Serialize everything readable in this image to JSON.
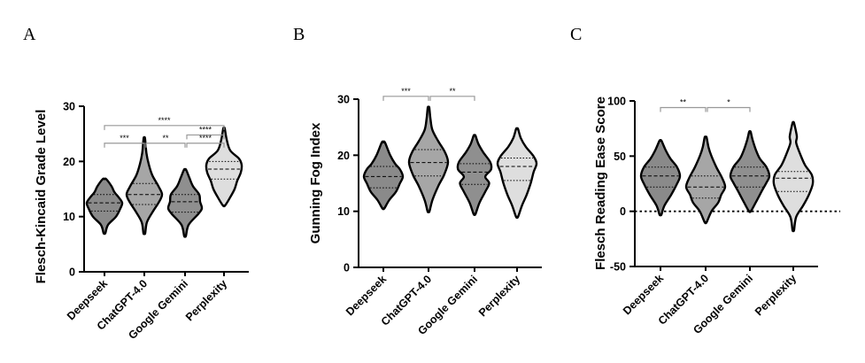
{
  "colors": {
    "Deepseek": "#8a8a8a",
    "ChatGPT-4.0": "#a6a6a6",
    "Google Gemini": "#8f8f8f",
    "Perplexity": "#dedede",
    "outline": "#000000",
    "bracket": "#999999"
  },
  "chart_data": [
    {
      "panel": "A",
      "type": "violin",
      "ylabel": "Flesch-Kincaid Grade Level",
      "ylim": [
        0,
        30
      ],
      "yticks": [
        0,
        10,
        20,
        30
      ],
      "categories": [
        "Deepseek",
        "ChatGPT-4.0",
        "Google Gemini",
        "Perplexity"
      ],
      "series": [
        {
          "min": 7,
          "max": 16.8,
          "q1": 11,
          "median": 12.5,
          "q3": 14,
          "density": [
            [
              7,
              0.05
            ],
            [
              8.5,
              0.2
            ],
            [
              10,
              0.65
            ],
            [
              11.5,
              0.9
            ],
            [
              12.5,
              1
            ],
            [
              13.5,
              0.8
            ],
            [
              14.5,
              0.55
            ],
            [
              15.5,
              0.4
            ],
            [
              16.8,
              0.1
            ]
          ]
        },
        {
          "min": 7,
          "max": 24.2,
          "q1": 12.2,
          "median": 14,
          "q3": 16,
          "density": [
            [
              7,
              0.05
            ],
            [
              9,
              0.15
            ],
            [
              11,
              0.5
            ],
            [
              12.5,
              0.8
            ],
            [
              14,
              1
            ],
            [
              15.5,
              0.8
            ],
            [
              17.5,
              0.45
            ],
            [
              19.5,
              0.25
            ],
            [
              21.5,
              0.12
            ],
            [
              24.2,
              0.04
            ]
          ]
        },
        {
          "min": 6.5,
          "max": 18.5,
          "q1": 10.8,
          "median": 12.7,
          "q3": 14,
          "density": [
            [
              6.5,
              0.05
            ],
            [
              8.5,
              0.2
            ],
            [
              10.5,
              0.75
            ],
            [
              11.5,
              0.95
            ],
            [
              12.7,
              0.85
            ],
            [
              14,
              0.8
            ],
            [
              15.5,
              0.45
            ],
            [
              17,
              0.25
            ],
            [
              18.5,
              0.06
            ]
          ]
        },
        {
          "min": 12,
          "max": 26,
          "q1": 16.8,
          "median": 18.6,
          "q3": 20,
          "density": [
            [
              12,
              0.06
            ],
            [
              13.5,
              0.35
            ],
            [
              15,
              0.6
            ],
            [
              16.5,
              0.75
            ],
            [
              18,
              0.95
            ],
            [
              19.3,
              1
            ],
            [
              20.5,
              0.85
            ],
            [
              22,
              0.35
            ],
            [
              24,
              0.15
            ],
            [
              26,
              0.04
            ]
          ]
        }
      ],
      "comparisons": [
        {
          "pair": [
            "Deepseek",
            "Perplexity"
          ],
          "label": "****",
          "y": 26.5
        },
        {
          "pair": [
            "Google Gemini",
            "Perplexity"
          ],
          "label": "****",
          "y": 24.8
        },
        {
          "pair": [
            "Deepseek",
            "ChatGPT-4.0"
          ],
          "label": "***",
          "y": 23.3
        },
        {
          "pair": [
            "ChatGPT-4.0",
            "Google Gemini"
          ],
          "label": "**",
          "y": 23.3
        },
        {
          "pair": [
            "Google Gemini",
            "Perplexity"
          ],
          "label": "****",
          "y": 23.3
        }
      ]
    },
    {
      "panel": "B",
      "type": "violin",
      "ylabel": "Gunning Fog Index",
      "ylim": [
        0,
        30
      ],
      "yticks": [
        0,
        10,
        20,
        30
      ],
      "categories": [
        "Deepseek",
        "ChatGPT-4.0",
        "Google Gemini",
        "Perplexity"
      ],
      "series": [
        {
          "min": 10.5,
          "max": 22.3,
          "q1": 14.2,
          "median": 16.2,
          "q3": 18,
          "density": [
            [
              10.5,
              0.05
            ],
            [
              12,
              0.3
            ],
            [
              13.5,
              0.65
            ],
            [
              15,
              0.85
            ],
            [
              16.2,
              1
            ],
            [
              17.5,
              0.85
            ],
            [
              18.5,
              0.6
            ],
            [
              20,
              0.35
            ],
            [
              22.3,
              0.08
            ]
          ]
        },
        {
          "min": 10,
          "max": 28.5,
          "q1": 16.3,
          "median": 18.7,
          "q3": 21,
          "density": [
            [
              10,
              0.05
            ],
            [
              12,
              0.2
            ],
            [
              14.5,
              0.5
            ],
            [
              16.5,
              0.8
            ],
            [
              18.7,
              1
            ],
            [
              20.5,
              0.85
            ],
            [
              22.5,
              0.5
            ],
            [
              24.5,
              0.2
            ],
            [
              26.5,
              0.1
            ],
            [
              28.5,
              0.04
            ]
          ]
        },
        {
          "min": 9.5,
          "max": 23.5,
          "q1": 14.8,
          "median": 17,
          "q3": 18.5,
          "density": [
            [
              9.5,
              0.05
            ],
            [
              11.5,
              0.25
            ],
            [
              13.5,
              0.55
            ],
            [
              15,
              0.75
            ],
            [
              16.2,
              0.55
            ],
            [
              17.5,
              0.85
            ],
            [
              18.8,
              0.8
            ],
            [
              20.5,
              0.45
            ],
            [
              22,
              0.2
            ],
            [
              23.5,
              0.05
            ]
          ]
        },
        {
          "min": 9,
          "max": 24.7,
          "q1": 15.5,
          "median": 18,
          "q3": 19.5,
          "density": [
            [
              9,
              0.05
            ],
            [
              11,
              0.25
            ],
            [
              13,
              0.5
            ],
            [
              15,
              0.7
            ],
            [
              17,
              0.85
            ],
            [
              18.5,
              1
            ],
            [
              19.8,
              0.85
            ],
            [
              21.5,
              0.45
            ],
            [
              23,
              0.2
            ],
            [
              24.7,
              0.05
            ]
          ]
        }
      ],
      "comparisons": [
        {
          "pair": [
            "Deepseek",
            "ChatGPT-4.0"
          ],
          "label": "***",
          "y": 30.5
        },
        {
          "pair": [
            "ChatGPT-4.0",
            "Google Gemini"
          ],
          "label": "**",
          "y": 30.5
        }
      ]
    },
    {
      "panel": "C",
      "type": "violin",
      "ylabel": "Flesch Reading Ease Score",
      "ylim": [
        -50,
        100
      ],
      "yticks": [
        -50,
        0,
        50,
        100
      ],
      "reference_line": 0,
      "categories": [
        "Deepseek",
        "ChatGPT-4.0",
        "Google Gemini",
        "Perplexity"
      ],
      "series": [
        {
          "min": -3,
          "max": 64,
          "q1": 22,
          "median": 32,
          "q3": 40,
          "density": [
            [
              -3,
              0.05
            ],
            [
              5,
              0.2
            ],
            [
              15,
              0.55
            ],
            [
              25,
              0.85
            ],
            [
              32,
              1
            ],
            [
              40,
              0.85
            ],
            [
              48,
              0.5
            ],
            [
              56,
              0.25
            ],
            [
              64,
              0.05
            ]
          ]
        },
        {
          "min": -10,
          "max": 67,
          "q1": 12,
          "median": 22,
          "q3": 32,
          "density": [
            [
              -10,
              0.05
            ],
            [
              0,
              0.3
            ],
            [
              8,
              0.65
            ],
            [
              15,
              0.8
            ],
            [
              22,
              1
            ],
            [
              30,
              0.85
            ],
            [
              40,
              0.55
            ],
            [
              50,
              0.3
            ],
            [
              58,
              0.15
            ],
            [
              67,
              0.05
            ]
          ]
        },
        {
          "min": 0,
          "max": 72,
          "q1": 22,
          "median": 32,
          "q3": 40,
          "density": [
            [
              0,
              0.05
            ],
            [
              8,
              0.3
            ],
            [
              18,
              0.6
            ],
            [
              26,
              0.85
            ],
            [
              32,
              1
            ],
            [
              40,
              0.85
            ],
            [
              48,
              0.5
            ],
            [
              56,
              0.3
            ],
            [
              64,
              0.15
            ],
            [
              72,
              0.04
            ]
          ]
        },
        {
          "min": -17,
          "max": 80,
          "q1": 18,
          "median": 30,
          "q3": 36,
          "density": [
            [
              -17,
              0.04
            ],
            [
              -5,
              0.15
            ],
            [
              5,
              0.5
            ],
            [
              15,
              0.8
            ],
            [
              25,
              1
            ],
            [
              33,
              0.95
            ],
            [
              42,
              0.6
            ],
            [
              52,
              0.35
            ],
            [
              62,
              0.15
            ],
            [
              68,
              0.18
            ],
            [
              80,
              0.04
            ]
          ]
        }
      ],
      "comparisons": [
        {
          "pair": [
            "Deepseek",
            "ChatGPT-4.0"
          ],
          "label": "**",
          "y": 94
        },
        {
          "pair": [
            "ChatGPT-4.0",
            "Google Gemini"
          ],
          "label": "*",
          "y": 94
        }
      ]
    }
  ]
}
